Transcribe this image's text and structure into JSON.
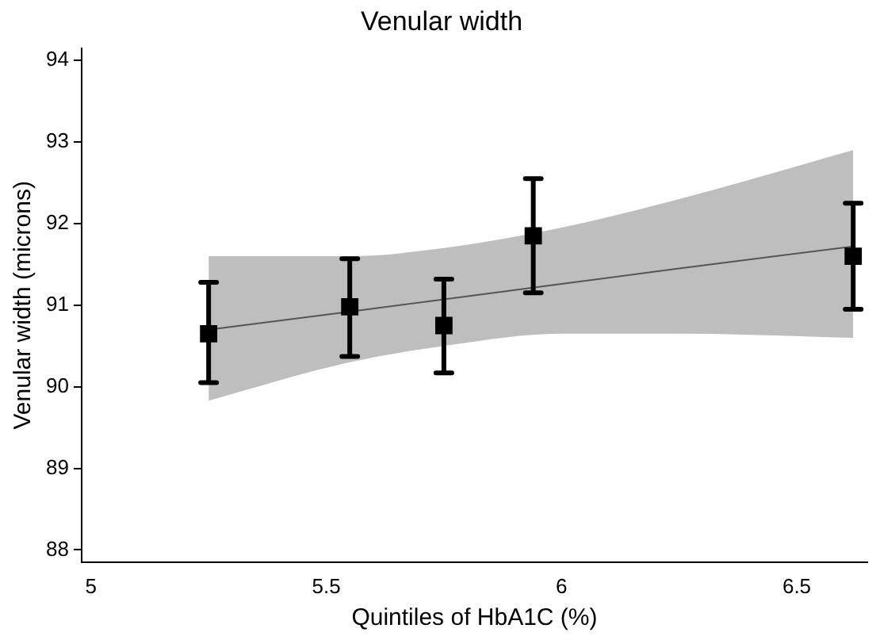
{
  "chart_data": {
    "type": "scatter",
    "title": "Venular width",
    "xlabel": "Quintiles of HbA1C (%)",
    "ylabel": "Venular width (microns)",
    "xlim": [
      4.98,
      6.65
    ],
    "xticks": [
      5,
      5.5,
      6,
      6.5
    ],
    "ylim": [
      87.85,
      94.15
    ],
    "yticks": [
      88,
      89,
      90,
      91,
      92,
      93,
      94
    ],
    "grid": false,
    "legend": false,
    "series": [
      {
        "type": "line",
        "color": "#555555",
        "x": [
          5.25,
          5.55,
          5.75,
          6.0,
          6.25,
          6.62
        ],
        "values": [
          90.7,
          90.92,
          91.07,
          91.26,
          91.45,
          91.72
        ],
        "lower": [
          89.83,
          90.3,
          90.5,
          90.65,
          90.65,
          90.6
        ],
        "upper": [
          91.6,
          91.6,
          91.7,
          91.95,
          92.3,
          92.9
        ]
      },
      {
        "color": "#000000",
        "marker": "square",
        "x": [
          5.25,
          5.55,
          5.75,
          5.94,
          6.62
        ],
        "values": [
          90.65,
          90.98,
          90.75,
          91.85,
          91.6
        ],
        "errors": [
          [
            90.05,
            91.28
          ],
          [
            90.37,
            91.57
          ],
          [
            90.17,
            91.32
          ],
          [
            91.15,
            92.55
          ],
          [
            90.95,
            92.25
          ]
        ]
      }
    ]
  }
}
